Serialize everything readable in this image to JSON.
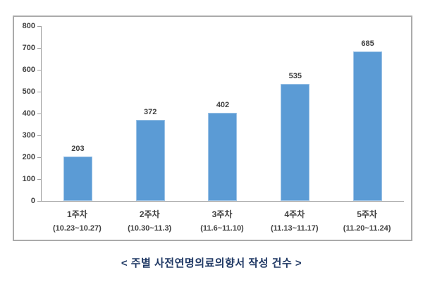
{
  "caption": "< 주별 사전연명의료의향서 작성 건수 >",
  "colors": {
    "bar_fill": "#5B9BD5",
    "bar_edge": "#9DC3E6",
    "axis_line": "#9E9E9E",
    "frame_border": "#ABABAB",
    "label_text": "#404040",
    "caption_text": "#1F3864"
  },
  "chart_data": {
    "type": "bar",
    "categories": [
      "1주차",
      "2주차",
      "3주차",
      "4주차",
      "5주차"
    ],
    "category_sublabels": [
      "(10.23~10.27)",
      "(10.30~11.3)",
      "(11.6~11.10)",
      "(11.13~11.17)",
      "(11.20~11.24)"
    ],
    "values": [
      203,
      372,
      402,
      535,
      685
    ],
    "title": "주별 사전연명의료의향서 작성 건수",
    "xlabel": "",
    "ylabel": "",
    "ylim": [
      0,
      800
    ],
    "yticks": [
      0,
      100,
      200,
      300,
      400,
      500,
      600,
      700,
      800
    ],
    "grid": false,
    "legend": false,
    "data_labels": true
  }
}
